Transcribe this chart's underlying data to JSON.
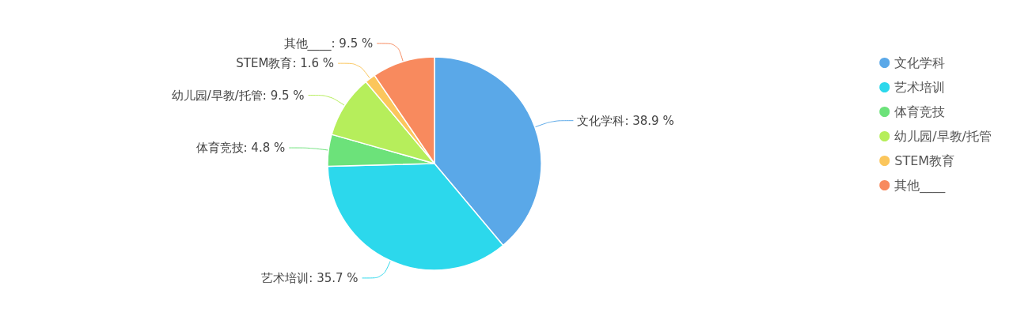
{
  "chart_data": {
    "type": "pie",
    "categories": [
      "文化学科",
      "艺术培训",
      "体育竞技",
      "幼儿园/早教/托管",
      "STEM教育",
      "其他____"
    ],
    "values": [
      38.9,
      35.7,
      4.8,
      9.5,
      1.6,
      9.5
    ],
    "colors": [
      "#5aa8e8",
      "#2cd8ec",
      "#6ce27a",
      "#b6ee5b",
      "#fbc65c",
      "#f88a5e"
    ],
    "value_labels": [
      "文化学科: 38.9 %",
      "艺术培训: 35.7 %",
      "体育竞技: 4.8 %",
      "幼儿园/早教/托管: 9.5 %",
      "STEM教育: 1.6 %",
      "其他____: 9.5 %"
    ],
    "legend": "top right"
  }
}
